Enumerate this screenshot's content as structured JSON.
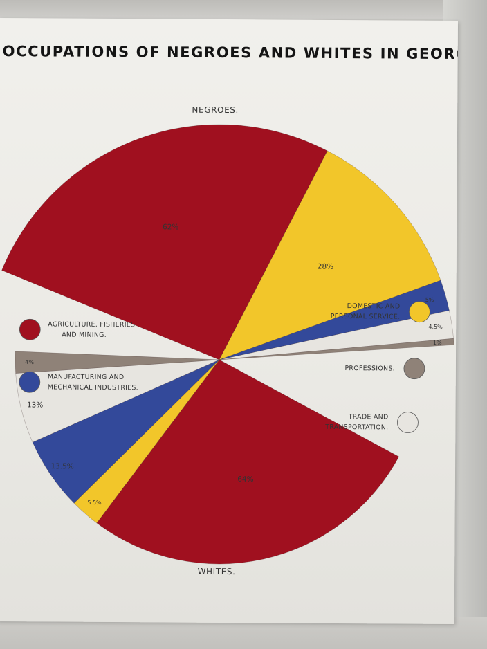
{
  "chart_data": {
    "type": "pie",
    "title": "OCCUPATIONS OF NEGROES AND WHITES IN GEORGIA .",
    "charts": [
      {
        "name": "NEGROES.",
        "slices": [
          {
            "category": "AGRICULTURE, FISHERIES AND MINING.",
            "value": 62,
            "label": "62%"
          },
          {
            "category": "DOMESTIC AND PERSONAL SERVICE.",
            "value": 28,
            "label": "28%"
          },
          {
            "category": "MANUFACTURING AND MECHANICAL INDUSTRIES.",
            "value": 5,
            "label": "5%"
          },
          {
            "category": "TRADE AND TRANSPORTATION.",
            "value": 4.5,
            "label": "4.5%"
          },
          {
            "category": "PROFESSIONS.",
            "value": 1,
            "label": "1%"
          }
        ]
      },
      {
        "name": "WHITES.",
        "slices": [
          {
            "category": "AGRICULTURE, FISHERIES AND MINING.",
            "value": 64,
            "label": "64%"
          },
          {
            "category": "DOMESTIC AND PERSONAL SERVICE.",
            "value": 5.5,
            "label": "5.5%"
          },
          {
            "category": "MANUFACTURING AND MECHANICAL INDUSTRIES.",
            "value": 13.5,
            "label": "13.5%"
          },
          {
            "category": "TRADE AND TRANSPORTATION.",
            "value": 13,
            "label": "13%"
          },
          {
            "category": "PROFESSIONS.",
            "value": 4,
            "label": "4%"
          }
        ]
      }
    ],
    "legend": [
      {
        "label_lines": [
          "AGRICULTURE, FISHERIES",
          "AND MINING."
        ],
        "color": "#a0101f",
        "side": "left"
      },
      {
        "label_lines": [
          "MANUFACTURING AND",
          "MECHANICAL INDUSTRIES."
        ],
        "color": "#33499a",
        "side": "left"
      },
      {
        "label_lines": [
          "DOMESTIC AND",
          "PERSONAL SERVICE."
        ],
        "color": "#f2c62a",
        "side": "right"
      },
      {
        "label_lines": [
          "PROFESSIONS."
        ],
        "color": "#8f8278",
        "side": "right"
      },
      {
        "label_lines": [
          "TRADE AND",
          "TRANSPORTATION."
        ],
        "color": "#e7e5e0",
        "side": "right"
      }
    ]
  }
}
